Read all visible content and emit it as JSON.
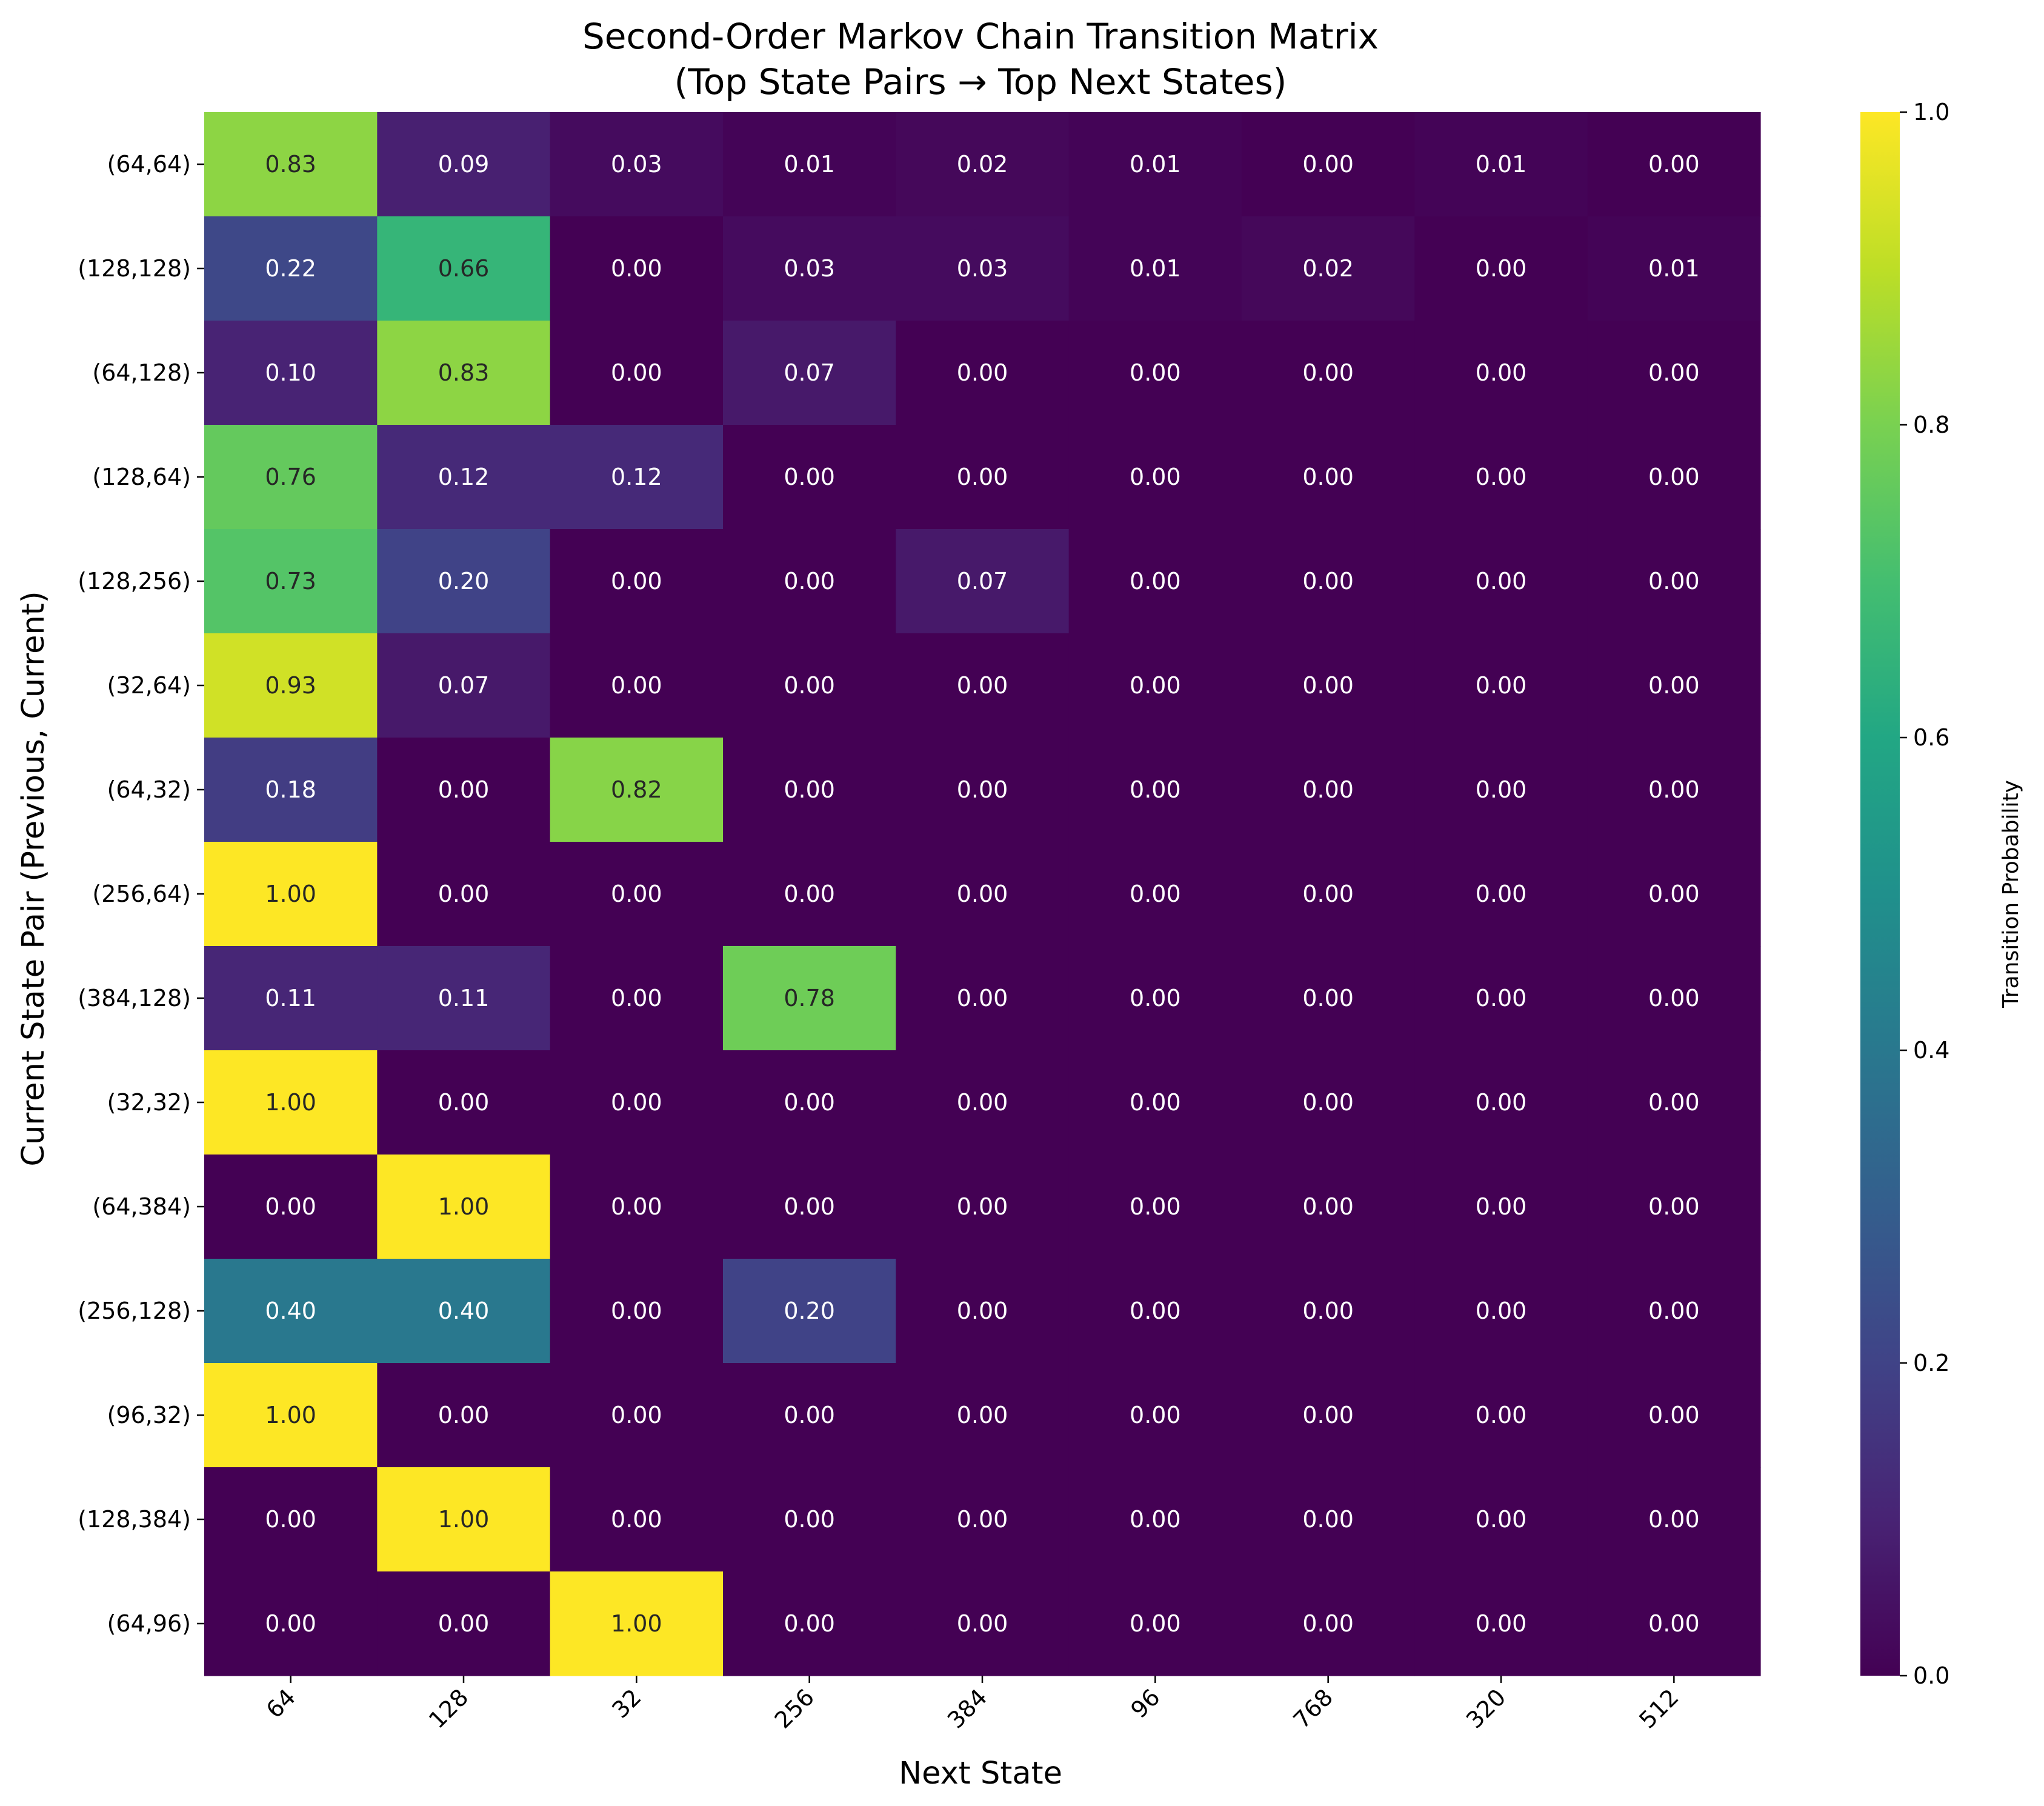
{
  "chart_data": {
    "type": "heatmap",
    "title": "Second-Order Markov Chain Transition Matrix",
    "subtitle": "(Top State Pairs → Top Next States)",
    "xlabel": "Next State",
    "ylabel": "Current State Pair (Previous, Current)",
    "colorbar_label": "Transition Probability",
    "colormap": "viridis",
    "vmin": 0.0,
    "vmax": 1.0,
    "colorbar_ticks": [
      "0.0",
      "0.2",
      "0.4",
      "0.6",
      "0.8",
      "1.0"
    ],
    "x_categories": [
      "64",
      "128",
      "32",
      "256",
      "384",
      "96",
      "768",
      "320",
      "512"
    ],
    "y_categories": [
      "(64,64)",
      "(128,128)",
      "(64,128)",
      "(128,64)",
      "(128,256)",
      "(32,64)",
      "(64,32)",
      "(256,64)",
      "(384,128)",
      "(32,32)",
      "(64,384)",
      "(256,128)",
      "(96,32)",
      "(128,384)",
      "(64,96)"
    ],
    "values": [
      [
        0.83,
        0.09,
        0.03,
        0.01,
        0.02,
        0.01,
        0.0,
        0.01,
        0.0
      ],
      [
        0.22,
        0.66,
        0.0,
        0.03,
        0.03,
        0.01,
        0.02,
        0.0,
        0.01
      ],
      [
        0.1,
        0.83,
        0.0,
        0.07,
        0.0,
        0.0,
        0.0,
        0.0,
        0.0
      ],
      [
        0.76,
        0.12,
        0.12,
        0.0,
        0.0,
        0.0,
        0.0,
        0.0,
        0.0
      ],
      [
        0.73,
        0.2,
        0.0,
        0.0,
        0.07,
        0.0,
        0.0,
        0.0,
        0.0
      ],
      [
        0.93,
        0.07,
        0.0,
        0.0,
        0.0,
        0.0,
        0.0,
        0.0,
        0.0
      ],
      [
        0.18,
        0.0,
        0.82,
        0.0,
        0.0,
        0.0,
        0.0,
        0.0,
        0.0
      ],
      [
        1.0,
        0.0,
        0.0,
        0.0,
        0.0,
        0.0,
        0.0,
        0.0,
        0.0
      ],
      [
        0.11,
        0.11,
        0.0,
        0.78,
        0.0,
        0.0,
        0.0,
        0.0,
        0.0
      ],
      [
        1.0,
        0.0,
        0.0,
        0.0,
        0.0,
        0.0,
        0.0,
        0.0,
        0.0
      ],
      [
        0.0,
        1.0,
        0.0,
        0.0,
        0.0,
        0.0,
        0.0,
        0.0,
        0.0
      ],
      [
        0.4,
        0.4,
        0.0,
        0.2,
        0.0,
        0.0,
        0.0,
        0.0,
        0.0
      ],
      [
        1.0,
        0.0,
        0.0,
        0.0,
        0.0,
        0.0,
        0.0,
        0.0,
        0.0
      ],
      [
        0.0,
        1.0,
        0.0,
        0.0,
        0.0,
        0.0,
        0.0,
        0.0,
        0.0
      ],
      [
        0.0,
        0.0,
        1.0,
        0.0,
        0.0,
        0.0,
        0.0,
        0.0,
        0.0
      ]
    ]
  }
}
